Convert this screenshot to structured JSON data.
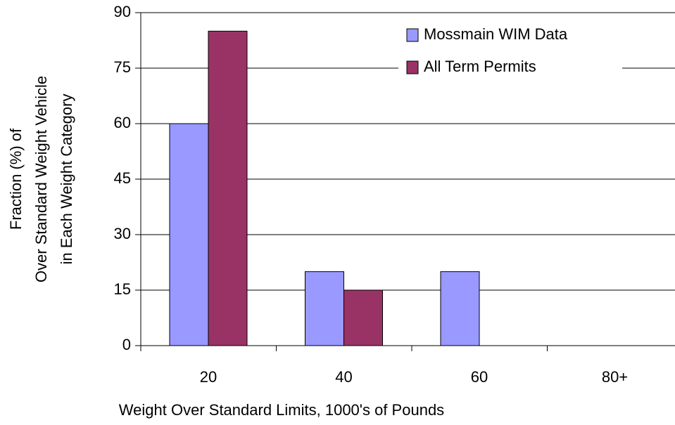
{
  "chart_data": {
    "type": "bar",
    "xlabel": "Weight Over Standard Limits, 1000's of Pounds",
    "ylabel": [
      "Fraction (%) of",
      "Over Standard Weight Vehicle",
      "in Each Weight Category"
    ],
    "categories": [
      "20",
      "40",
      "60",
      "80+"
    ],
    "series": [
      {
        "name": "Mossmain WIM Data",
        "color": "#9999ff",
        "values": [
          60,
          20,
          20,
          0
        ]
      },
      {
        "name": "All Term Permits",
        "color": "#993366",
        "values": [
          85,
          15,
          0,
          0
        ]
      }
    ],
    "ylim": [
      0,
      90
    ],
    "yticks": [
      0,
      15,
      30,
      45,
      60,
      75,
      90
    ],
    "grid": true,
    "legend": "upper right"
  }
}
